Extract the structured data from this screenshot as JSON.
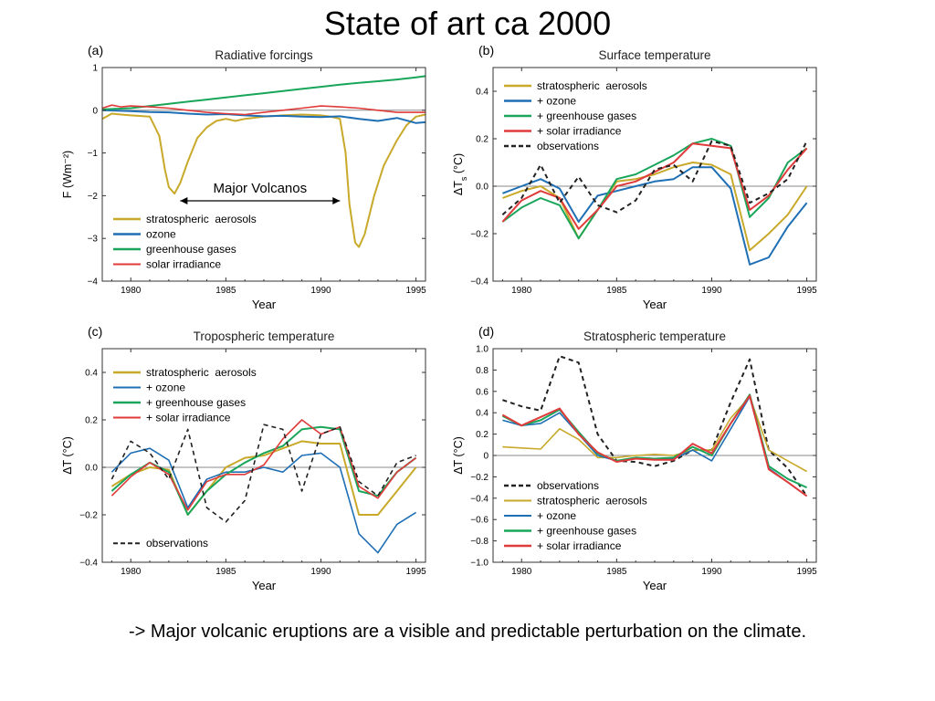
{
  "title": "State of art ca 2000",
  "caption": "-> Major volcanic eruptions are a visible and predictable perturbation on the climate.",
  "annotation": "Major Volcanos",
  "colors": {
    "strat_aerosols": "#c8a92a",
    "ozone": "#1f6fb5",
    "greenhouse": "#1aa65a",
    "solar": "#e03a3a",
    "observations": "#222222",
    "zero_line": "#8a8a8a"
  },
  "chart_data": [
    {
      "id": "a",
      "panel_label": "(a)",
      "type": "line",
      "title": "Radiative forcings",
      "xlabel": "Year",
      "ylabel": "F (Wm⁻²)",
      "xlim": [
        1978.5,
        1995.5
      ],
      "ylim": [
        -4,
        1
      ],
      "xticks": [
        1980,
        1985,
        1990,
        1995
      ],
      "yticks": [
        1,
        0,
        -1,
        -2,
        -3,
        -4
      ],
      "ytick_labels": [
        "1",
        "0",
        "−1",
        "−2",
        "−3",
        "−4"
      ],
      "legend_position": "lower-left",
      "series": [
        {
          "name": "stratospheric  aerosols",
          "color": "strat_aerosols",
          "dash": false,
          "width": 2,
          "x": [
            1978.5,
            1979,
            1979.5,
            1980,
            1981,
            1981.5,
            1981.8,
            1982,
            1982.3,
            1982.6,
            1983,
            1983.5,
            1984,
            1984.5,
            1985,
            1985.5,
            1986,
            1987,
            1988,
            1989,
            1990,
            1990.5,
            1991,
            1991.3,
            1991.5,
            1991.8,
            1992,
            1992.3,
            1992.8,
            1993.3,
            1994,
            1994.5,
            1995,
            1995.5
          ],
          "y": [
            -0.2,
            -0.08,
            -0.1,
            -0.12,
            -0.15,
            -0.6,
            -1.4,
            -1.8,
            -1.95,
            -1.7,
            -1.2,
            -0.65,
            -0.4,
            -0.25,
            -0.2,
            -0.25,
            -0.2,
            -0.15,
            -0.12,
            -0.1,
            -0.12,
            -0.15,
            -0.2,
            -1.0,
            -2.2,
            -3.1,
            -3.2,
            -2.9,
            -2.0,
            -1.3,
            -0.7,
            -0.35,
            -0.15,
            -0.1
          ]
        },
        {
          "name": "ozone",
          "color": "ozone",
          "dash": false,
          "width": 2,
          "x": [
            1978.5,
            1980,
            1981,
            1982,
            1983,
            1984,
            1985,
            1986,
            1987,
            1988,
            1989,
            1990,
            1991,
            1992,
            1993,
            1994,
            1995,
            1995.5
          ],
          "y": [
            0,
            -0.02,
            -0.04,
            -0.05,
            -0.08,
            -0.1,
            -0.09,
            -0.12,
            -0.14,
            -0.13,
            -0.15,
            -0.16,
            -0.14,
            -0.2,
            -0.25,
            -0.18,
            -0.3,
            -0.28
          ]
        },
        {
          "name": "greenhouse gases",
          "color": "greenhouse",
          "dash": false,
          "width": 2,
          "x": [
            1978.5,
            1980,
            1981,
            1982,
            1983,
            1984,
            1985,
            1986,
            1987,
            1988,
            1989,
            1990,
            1991,
            1992,
            1993,
            1994,
            1995,
            1995.5
          ],
          "y": [
            0.02,
            0.05,
            0.1,
            0.15,
            0.2,
            0.25,
            0.3,
            0.35,
            0.4,
            0.45,
            0.5,
            0.55,
            0.6,
            0.64,
            0.68,
            0.72,
            0.77,
            0.8
          ]
        },
        {
          "name": "solar irradiance",
          "color": "solar",
          "dash": false,
          "width": 1.6,
          "x": [
            1978.5,
            1979,
            1979.5,
            1980,
            1981,
            1982,
            1983,
            1984,
            1985,
            1986,
            1987,
            1988,
            1989,
            1990,
            1991,
            1992,
            1993,
            1994,
            1995,
            1995.5
          ],
          "y": [
            0.05,
            0.12,
            0.08,
            0.1,
            0.08,
            0.05,
            0.0,
            -0.05,
            -0.08,
            -0.1,
            -0.05,
            0.0,
            0.05,
            0.1,
            0.08,
            0.05,
            0.0,
            -0.05,
            -0.05,
            -0.05
          ]
        }
      ]
    },
    {
      "id": "b",
      "panel_label": "(b)",
      "type": "line",
      "title": "Surface temperature",
      "xlabel": "Year",
      "ylabel": "ΔT_s (°C)",
      "xlim": [
        1978.5,
        1995.5
      ],
      "ylim": [
        -0.4,
        0.5
      ],
      "xticks": [
        1980,
        1985,
        1990,
        1995
      ],
      "yticks": [
        0.4,
        0.2,
        0.0,
        -0.2,
        -0.4
      ],
      "ytick_labels": [
        "0.4",
        "0.2",
        "0.0",
        "−0.2",
        "−0.4"
      ],
      "legend_position": "top-left",
      "series": [
        {
          "name": "stratospheric  aerosols",
          "color": "strat_aerosols",
          "dash": false,
          "width": 2,
          "x": [
            1979,
            1980,
            1981,
            1982,
            1983,
            1984,
            1985,
            1986,
            1987,
            1988,
            1989,
            1990,
            1991,
            1992,
            1993,
            1994,
            1995
          ],
          "y": [
            -0.05,
            -0.02,
            0.0,
            -0.05,
            -0.22,
            -0.1,
            0.02,
            0.03,
            0.05,
            0.08,
            0.1,
            0.09,
            0.05,
            -0.27,
            -0.2,
            -0.12,
            0.0
          ]
        },
        {
          "name": "+ ozone",
          "color": "ozone",
          "dash": false,
          "width": 2,
          "x": [
            1979,
            1980,
            1981,
            1982,
            1983,
            1984,
            1985,
            1986,
            1987,
            1988,
            1989,
            1990,
            1991,
            1992,
            1993,
            1994,
            1995
          ],
          "y": [
            -0.03,
            0.0,
            0.03,
            -0.01,
            -0.15,
            -0.04,
            -0.02,
            0.0,
            0.02,
            0.03,
            0.08,
            0.08,
            -0.01,
            -0.33,
            -0.3,
            -0.17,
            -0.07
          ]
        },
        {
          "name": "+ greenhouse gases",
          "color": "greenhouse",
          "dash": false,
          "width": 2,
          "x": [
            1979,
            1980,
            1981,
            1982,
            1983,
            1984,
            1985,
            1986,
            1987,
            1988,
            1989,
            1990,
            1991,
            1992,
            1993,
            1994,
            1995
          ],
          "y": [
            -0.15,
            -0.09,
            -0.05,
            -0.08,
            -0.22,
            -0.1,
            0.03,
            0.05,
            0.09,
            0.13,
            0.18,
            0.2,
            0.17,
            -0.13,
            -0.05,
            0.1,
            0.16
          ]
        },
        {
          "name": "+ solar irradiance",
          "color": "solar",
          "dash": false,
          "width": 2,
          "x": [
            1979,
            1980,
            1981,
            1982,
            1983,
            1984,
            1985,
            1986,
            1987,
            1988,
            1989,
            1990,
            1991,
            1992,
            1993,
            1994,
            1995
          ],
          "y": [
            -0.15,
            -0.06,
            -0.02,
            -0.05,
            -0.18,
            -0.1,
            0.0,
            0.02,
            0.06,
            0.1,
            0.18,
            0.17,
            0.16,
            -0.1,
            -0.04,
            0.07,
            0.16
          ]
        },
        {
          "name": "observations",
          "color": "observations",
          "dash": true,
          "width": 2,
          "x": [
            1979,
            1980,
            1981,
            1982,
            1983,
            1984,
            1985,
            1986,
            1987,
            1988,
            1989,
            1990,
            1991,
            1992,
            1993,
            1994,
            1995
          ],
          "y": [
            -0.12,
            -0.05,
            0.09,
            -0.07,
            0.04,
            -0.08,
            -0.11,
            -0.06,
            0.07,
            0.09,
            0.02,
            0.19,
            0.17,
            -0.07,
            -0.03,
            0.03,
            0.19
          ]
        }
      ]
    },
    {
      "id": "c",
      "panel_label": "(c)",
      "type": "line",
      "title": "Tropospheric temperature",
      "xlabel": "Year",
      "ylabel": "ΔT (°C)",
      "xlim": [
        1978.5,
        1995.5
      ],
      "ylim": [
        -0.4,
        0.5
      ],
      "xticks": [
        1980,
        1985,
        1990,
        1995
      ],
      "yticks": [
        0.4,
        0.2,
        0.0,
        -0.2,
        -0.4
      ],
      "ytick_labels": [
        "0.4",
        "0.2",
        "0.0",
        "−0.2",
        "−0.4"
      ],
      "legend_position": "top-left (observations lower-left)",
      "series": [
        {
          "name": "stratospheric  aerosols",
          "color": "strat_aerosols",
          "dash": false,
          "width": 2,
          "x": [
            1979,
            1980,
            1981,
            1982,
            1983,
            1984,
            1985,
            1986,
            1987,
            1988,
            1989,
            1990,
            1991,
            1992,
            1993,
            1994,
            1995
          ],
          "y": [
            -0.08,
            -0.03,
            0.0,
            -0.01,
            -0.2,
            -0.1,
            0.0,
            0.04,
            0.05,
            0.08,
            0.11,
            0.1,
            0.1,
            -0.2,
            -0.2,
            -0.1,
            0.0
          ]
        },
        {
          "name": "+ ozone",
          "color": "ozone",
          "dash": false,
          "width": 1.6,
          "x": [
            1979,
            1980,
            1981,
            1982,
            1983,
            1984,
            1985,
            1986,
            1987,
            1988,
            1989,
            1990,
            1991,
            1992,
            1993,
            1994,
            1995
          ],
          "y": [
            -0.02,
            0.06,
            0.08,
            0.03,
            -0.17,
            -0.05,
            -0.02,
            -0.02,
            0.0,
            -0.02,
            0.05,
            0.06,
            0.0,
            -0.28,
            -0.36,
            -0.24,
            -0.19
          ]
        },
        {
          "name": "+ greenhouse gases",
          "color": "greenhouse",
          "dash": false,
          "width": 2,
          "x": [
            1979,
            1980,
            1981,
            1982,
            1983,
            1984,
            1985,
            1986,
            1987,
            1988,
            1989,
            1990,
            1991,
            1992,
            1993,
            1994,
            1995
          ],
          "y": [
            -0.1,
            -0.03,
            0.02,
            -0.02,
            -0.2,
            -0.1,
            -0.03,
            0.02,
            0.06,
            0.09,
            0.16,
            0.17,
            0.16,
            -0.1,
            -0.12,
            -0.02,
            0.04
          ]
        },
        {
          "name": "+ solar irradiance",
          "color": "solar",
          "dash": false,
          "width": 1.6,
          "x": [
            1979,
            1980,
            1981,
            1982,
            1983,
            1984,
            1985,
            1986,
            1987,
            1988,
            1989,
            1990,
            1991,
            1992,
            1993,
            1994,
            1995
          ],
          "y": [
            -0.12,
            -0.04,
            0.02,
            -0.03,
            -0.18,
            -0.06,
            -0.03,
            -0.03,
            0.01,
            0.12,
            0.2,
            0.14,
            0.17,
            -0.08,
            -0.13,
            -0.02,
            0.04
          ]
        },
        {
          "name": "observations",
          "color": "observations",
          "dash": true,
          "width": 1.6,
          "x": [
            1979,
            1980,
            1981,
            1982,
            1983,
            1984,
            1985,
            1986,
            1987,
            1988,
            1989,
            1990,
            1991,
            1992,
            1993,
            1994,
            1995
          ],
          "y": [
            -0.05,
            0.11,
            0.06,
            -0.05,
            0.16,
            -0.17,
            -0.23,
            -0.14,
            0.18,
            0.16,
            -0.1,
            0.14,
            0.17,
            -0.06,
            -0.12,
            0.02,
            0.05
          ]
        }
      ]
    },
    {
      "id": "d",
      "panel_label": "(d)",
      "type": "line",
      "title": "Stratospheric temperature",
      "xlabel": "Year",
      "ylabel": "ΔT (°C)",
      "xlim": [
        1978.5,
        1995.5
      ],
      "ylim": [
        -1.0,
        1.0
      ],
      "xticks": [
        1980,
        1985,
        1990,
        1995
      ],
      "yticks": [
        1.0,
        0.8,
        0.6,
        0.4,
        0.2,
        0,
        -0.2,
        -0.4,
        -0.6,
        -0.8,
        -1.0
      ],
      "ytick_labels": [
        "1.0",
        "0.8",
        "0.6",
        "0.4",
        "0.2",
        "0",
        "−0.2",
        "−0.4",
        "−0.6",
        "−0.8",
        "−1.0"
      ],
      "legend_position": "bottom-left",
      "series": [
        {
          "name": "observations",
          "color": "observations",
          "dash": true,
          "width": 2,
          "x": [
            1979,
            1980,
            1981,
            1982,
            1983,
            1984,
            1985,
            1986,
            1987,
            1988,
            1989,
            1990,
            1991,
            1992,
            1993,
            1994,
            1995
          ],
          "y": [
            0.52,
            0.46,
            0.42,
            0.93,
            0.87,
            0.2,
            -0.05,
            -0.06,
            -0.1,
            -0.05,
            0.05,
            0.05,
            0.5,
            0.9,
            0.05,
            -0.12,
            -0.38
          ]
        },
        {
          "name": "stratospheric  aerosols",
          "color": "strat_aerosols",
          "dash": false,
          "width": 1.6,
          "x": [
            1979,
            1980,
            1981,
            1982,
            1983,
            1984,
            1985,
            1986,
            1987,
            1988,
            1989,
            1990,
            1991,
            1992,
            1993,
            1994,
            1995
          ],
          "y": [
            0.08,
            0.07,
            0.06,
            0.25,
            0.15,
            -0.02,
            -0.02,
            0.0,
            0.01,
            0.0,
            0.05,
            0.05,
            0.35,
            0.55,
            0.05,
            -0.05,
            -0.15
          ]
        },
        {
          "name": "+ ozone",
          "color": "ozone",
          "dash": false,
          "width": 1.6,
          "x": [
            1979,
            1980,
            1981,
            1982,
            1983,
            1984,
            1985,
            1986,
            1987,
            1988,
            1989,
            1990,
            1991,
            1992,
            1993,
            1994,
            1995
          ],
          "y": [
            0.33,
            0.28,
            0.3,
            0.4,
            0.2,
            0.0,
            -0.05,
            -0.02,
            -0.04,
            -0.03,
            0.05,
            -0.05,
            0.25,
            0.55,
            -0.12,
            -0.25,
            -0.38
          ]
        },
        {
          "name": "+ greenhouse gases",
          "color": "greenhouse",
          "dash": false,
          "width": 2,
          "x": [
            1979,
            1980,
            1981,
            1982,
            1983,
            1984,
            1985,
            1986,
            1987,
            1988,
            1989,
            1990,
            1991,
            1992,
            1993,
            1994,
            1995
          ],
          "y": [
            0.37,
            0.28,
            0.33,
            0.43,
            0.22,
            0.02,
            -0.05,
            -0.02,
            -0.03,
            -0.02,
            0.08,
            0.0,
            0.3,
            0.57,
            -0.1,
            -0.22,
            -0.3
          ]
        },
        {
          "name": "+ solar irradiance",
          "color": "solar",
          "dash": false,
          "width": 2,
          "x": [
            1979,
            1980,
            1981,
            1982,
            1983,
            1984,
            1985,
            1986,
            1987,
            1988,
            1989,
            1990,
            1991,
            1992,
            1993,
            1994,
            1995
          ],
          "y": [
            0.38,
            0.28,
            0.36,
            0.44,
            0.2,
            0.03,
            -0.06,
            -0.03,
            -0.04,
            -0.04,
            0.11,
            0.02,
            0.3,
            0.56,
            -0.13,
            -0.25,
            -0.38
          ]
        }
      ]
    }
  ]
}
